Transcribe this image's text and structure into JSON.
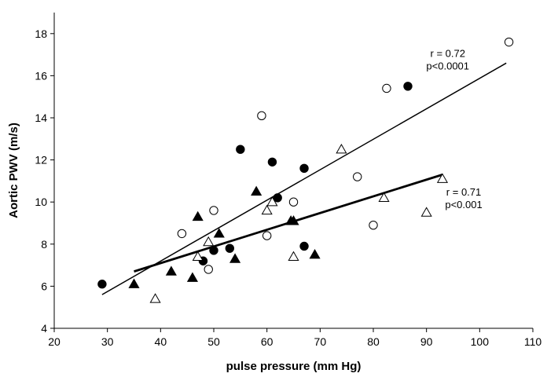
{
  "chart_data": {
    "type": "scatter",
    "title": "",
    "xlabel": "pulse pressure (mm Hg)",
    "ylabel": "Aortic PWV (m/s)",
    "xlim": [
      20,
      110
    ],
    "ylim": [
      4,
      19
    ],
    "x_ticks": [
      20,
      30,
      40,
      50,
      60,
      70,
      80,
      90,
      100,
      110
    ],
    "y_ticks": [
      4,
      6,
      8,
      10,
      12,
      14,
      16,
      18
    ],
    "grid": false,
    "series": [
      {
        "marker": "filled-circle",
        "points": [
          [
            29,
            6.1
          ],
          [
            48,
            7.2
          ],
          [
            50,
            7.7
          ],
          [
            53,
            7.8
          ],
          [
            55,
            12.5
          ],
          [
            61,
            11.9
          ],
          [
            62,
            10.2
          ],
          [
            67,
            11.6
          ],
          [
            67,
            7.9
          ],
          [
            86.5,
            15.5
          ]
        ]
      },
      {
        "marker": "open-circle",
        "points": [
          [
            44,
            8.5
          ],
          [
            49,
            6.8
          ],
          [
            50,
            9.6
          ],
          [
            59,
            14.1
          ],
          [
            60,
            8.4
          ],
          [
            65,
            10.0
          ],
          [
            77,
            11.2
          ],
          [
            80,
            8.9
          ],
          [
            82.5,
            15.4
          ],
          [
            105.5,
            17.6
          ]
        ]
      },
      {
        "marker": "filled-triangle",
        "points": [
          [
            35,
            6.1
          ],
          [
            42,
            6.7
          ],
          [
            46,
            6.4
          ],
          [
            47,
            9.3
          ],
          [
            51,
            8.5
          ],
          [
            54,
            7.3
          ],
          [
            58,
            10.5
          ],
          [
            64.5,
            9.1
          ],
          [
            65,
            9.1
          ],
          [
            69,
            7.5
          ]
        ]
      },
      {
        "marker": "open-triangle",
        "points": [
          [
            39,
            5.4
          ],
          [
            47,
            7.4
          ],
          [
            49,
            8.1
          ],
          [
            60,
            9.6
          ],
          [
            61,
            10.0
          ],
          [
            65,
            7.4
          ],
          [
            74,
            12.5
          ],
          [
            82,
            10.2
          ],
          [
            90,
            9.5
          ],
          [
            93,
            11.1
          ]
        ]
      }
    ],
    "fit_lines": [
      {
        "from": [
          29,
          5.6
        ],
        "to": [
          105,
          16.6
        ],
        "width": 1.5
      },
      {
        "from": [
          35,
          6.7
        ],
        "to": [
          93,
          11.3
        ],
        "width": 2.8
      }
    ],
    "annotations": [
      {
        "r": "r = 0.72",
        "p": "p<0.0001",
        "x": 94,
        "y": 16.9
      },
      {
        "r": "r = 0.71",
        "p": "p<0.001",
        "x": 97,
        "y": 10.3
      }
    ]
  }
}
